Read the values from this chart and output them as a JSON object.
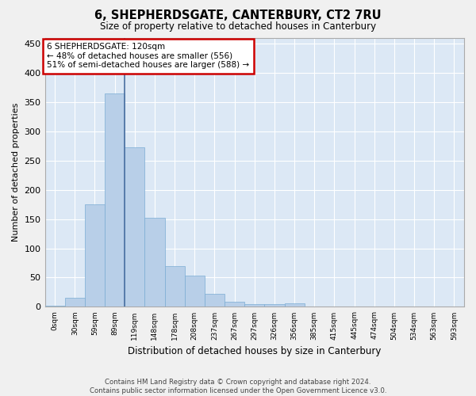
{
  "title": "6, SHEPHERDSGATE, CANTERBURY, CT2 7RU",
  "subtitle": "Size of property relative to detached houses in Canterbury",
  "xlabel": "Distribution of detached houses by size in Canterbury",
  "ylabel": "Number of detached properties",
  "bar_color": "#b8cfe8",
  "bar_edge_color": "#7aadd4",
  "highlight_line_color": "#4a6fa0",
  "background_color": "#dce8f5",
  "grid_color": "#ffffff",
  "categories": [
    "0sqm",
    "30sqm",
    "59sqm",
    "89sqm",
    "119sqm",
    "148sqm",
    "178sqm",
    "208sqm",
    "237sqm",
    "267sqm",
    "297sqm",
    "326sqm",
    "356sqm",
    "385sqm",
    "415sqm",
    "445sqm",
    "474sqm",
    "504sqm",
    "534sqm",
    "563sqm",
    "593sqm"
  ],
  "values": [
    2,
    16,
    175,
    365,
    273,
    152,
    70,
    54,
    22,
    9,
    5,
    5,
    6,
    0,
    0,
    0,
    0,
    1,
    0,
    0,
    1
  ],
  "highlight_index": 3,
  "annotation_line1": "6 SHEPHERDSGATE: 120sqm",
  "annotation_line2": "← 48% of detached houses are smaller (556)",
  "annotation_line3": "51% of semi-detached houses are larger (588) →",
  "annotation_box_color": "#ffffff",
  "annotation_border_color": "#cc0000",
  "ylim": [
    0,
    460
  ],
  "yticks": [
    0,
    50,
    100,
    150,
    200,
    250,
    300,
    350,
    400,
    450
  ],
  "fig_bg": "#f0f0f0",
  "footer1": "Contains HM Land Registry data © Crown copyright and database right 2024.",
  "footer2": "Contains public sector information licensed under the Open Government Licence v3.0."
}
